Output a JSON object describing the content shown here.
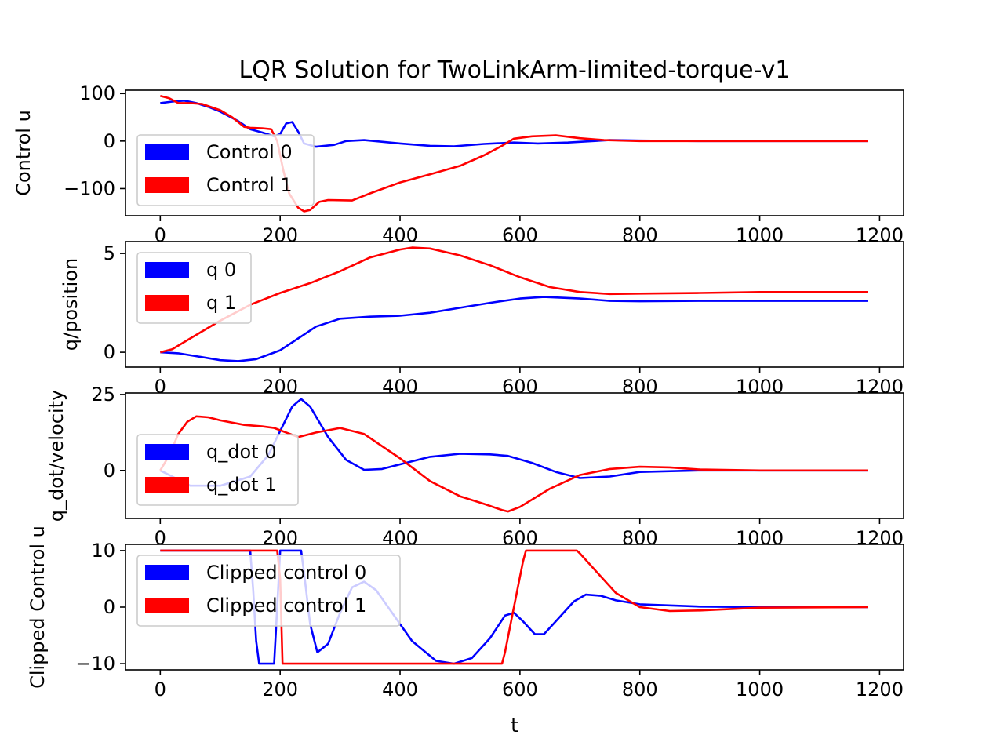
{
  "title": "LQR Solution for TwoLinkArm-limited-torque-v1",
  "xlabel": "t",
  "colors": {
    "series1": "#ff0000",
    "series0": "#0000ff"
  },
  "chart_data": [
    {
      "type": "line",
      "ylabel": "Control u",
      "xlim": [
        -58,
        1240
      ],
      "ylim": [
        -157,
        107
      ],
      "xticks": [
        0,
        200,
        400,
        600,
        800,
        1000,
        1200
      ],
      "xtick_labels": [
        "0",
        "200",
        "400",
        "600",
        "800",
        "1000",
        "1200"
      ],
      "yticks": [
        100,
        0,
        -100
      ],
      "ytick_labels": [
        "100",
        "0",
        "−100"
      ],
      "legend": "left",
      "series": [
        {
          "name": "Control 1",
          "color": "#ff0000",
          "x": [
            0,
            15,
            30,
            50,
            70,
            100,
            120,
            140,
            150,
            170,
            185,
            195,
            205,
            215,
            230,
            240,
            250,
            265,
            280,
            320,
            350,
            400,
            450,
            500,
            540,
            570,
            590,
            620,
            660,
            700,
            740,
            800,
            900,
            1000,
            1180
          ],
          "y": [
            95,
            90,
            80,
            80,
            78,
            65,
            50,
            30,
            28,
            27,
            25,
            0,
            -60,
            -110,
            -140,
            -148,
            -145,
            -128,
            -124,
            -125,
            -110,
            -87,
            -70,
            -52,
            -30,
            -10,
            5,
            10,
            12,
            6,
            2,
            0,
            0,
            0,
            0
          ]
        },
        {
          "name": "Control 0",
          "color": "#0000ff",
          "x": [
            0,
            20,
            40,
            60,
            80,
            100,
            130,
            150,
            170,
            190,
            200,
            210,
            220,
            230,
            240,
            260,
            290,
            310,
            340,
            400,
            450,
            490,
            540,
            590,
            630,
            680,
            750,
            800,
            900,
            1180
          ],
          "y": [
            80,
            83,
            85,
            80,
            72,
            62,
            42,
            25,
            18,
            10,
            15,
            37,
            40,
            20,
            -5,
            -12,
            -8,
            0,
            2,
            -5,
            -10,
            -11,
            -6,
            -3,
            -5,
            -3,
            2,
            1,
            0,
            0
          ]
        }
      ]
    },
    {
      "type": "line",
      "ylabel": "q/position",
      "xlim": [
        -58,
        1240
      ],
      "ylim": [
        -0.75,
        5.6
      ],
      "xticks": [
        0,
        200,
        400,
        600,
        800,
        1000,
        1200
      ],
      "xtick_labels": [
        "0",
        "200",
        "400",
        "600",
        "800",
        "1000",
        "1200"
      ],
      "yticks": [
        5,
        0
      ],
      "ytick_labels": [
        "5",
        "0"
      ],
      "legend": "upper left",
      "series": [
        {
          "name": "q 1",
          "color": "#ff0000",
          "x": [
            0,
            20,
            50,
            100,
            150,
            200,
            250,
            300,
            350,
            400,
            420,
            450,
            500,
            550,
            600,
            650,
            700,
            750,
            800,
            900,
            1000,
            1180
          ],
          "y": [
            0,
            0.15,
            0.7,
            1.6,
            2.4,
            3.0,
            3.5,
            4.1,
            4.8,
            5.2,
            5.3,
            5.25,
            4.9,
            4.4,
            3.8,
            3.3,
            3.05,
            2.95,
            2.97,
            3.0,
            3.05,
            3.05
          ]
        },
        {
          "name": "q 0",
          "color": "#0000ff",
          "x": [
            0,
            30,
            60,
            100,
            130,
            160,
            200,
            230,
            260,
            300,
            350,
            400,
            450,
            500,
            550,
            600,
            640,
            700,
            750,
            800,
            900,
            1000,
            1180
          ],
          "y": [
            0,
            -0.05,
            -0.2,
            -0.4,
            -0.45,
            -0.35,
            0.1,
            0.7,
            1.3,
            1.7,
            1.8,
            1.85,
            2.0,
            2.25,
            2.5,
            2.72,
            2.8,
            2.72,
            2.6,
            2.58,
            2.6,
            2.6,
            2.6
          ]
        }
      ]
    },
    {
      "type": "line",
      "ylabel": "q_dot/velocity",
      "xlim": [
        -58,
        1240
      ],
      "ylim": [
        -15.8,
        25.5
      ],
      "xticks": [
        0,
        200,
        400,
        600,
        800,
        1000,
        1200
      ],
      "xtick_labels": [
        "0",
        "200",
        "400",
        "600",
        "800",
        "1000",
        "1200"
      ],
      "yticks": [
        25,
        0
      ],
      "ytick_labels": [
        "25",
        "0"
      ],
      "legend": "left",
      "series": [
        {
          "name": "q_dot 1",
          "color": "#ff0000",
          "x": [
            0,
            15,
            30,
            45,
            60,
            80,
            100,
            140,
            170,
            190,
            230,
            260,
            300,
            340,
            400,
            450,
            500,
            540,
            570,
            580,
            600,
            650,
            700,
            750,
            800,
            850,
            900,
            1000,
            1180
          ],
          "y": [
            0,
            5,
            12,
            16,
            17.8,
            17.5,
            16.5,
            15,
            14.5,
            14,
            11,
            12.5,
            14,
            12,
            4,
            -3.5,
            -8.5,
            -11,
            -13,
            -13.5,
            -12,
            -6,
            -1.5,
            0.5,
            1.2,
            1,
            0.3,
            0,
            0
          ]
        },
        {
          "name": "q_dot 0",
          "color": "#0000ff",
          "x": [
            0,
            20,
            50,
            100,
            150,
            180,
            200,
            220,
            235,
            250,
            280,
            310,
            340,
            370,
            400,
            450,
            500,
            550,
            580,
            620,
            660,
            700,
            750,
            800,
            900,
            1000,
            1180
          ],
          "y": [
            0,
            -2,
            -5,
            -5,
            -2,
            5,
            13,
            21,
            23.5,
            21,
            11,
            3.5,
            0.2,
            0.5,
            2,
            4.5,
            5.5,
            5.3,
            4.8,
            2.5,
            -0.5,
            -2.5,
            -2,
            -0.5,
            0,
            0,
            0
          ]
        }
      ]
    },
    {
      "type": "line",
      "ylabel": "Clipped Control u",
      "xlim": [
        -58,
        1240
      ],
      "ylim": [
        -11.1,
        11.1
      ],
      "xticks": [
        0,
        200,
        400,
        600,
        800,
        1000,
        1200
      ],
      "xtick_labels": [
        "0",
        "200",
        "400",
        "600",
        "800",
        "1000",
        "1200"
      ],
      "yticks": [
        10,
        0,
        -10
      ],
      "ytick_labels": [
        "10",
        "0",
        "−10"
      ],
      "legend": "upper left",
      "series": [
        {
          "name": "Clipped control 1",
          "color": "#ff0000",
          "x": [
            0,
            195,
            200,
            204,
            570,
            575,
            590,
            605,
            610,
            695,
            700,
            730,
            760,
            800,
            850,
            900,
            1000,
            1180
          ],
          "y": [
            10,
            10,
            5,
            -10,
            -10,
            -8,
            0,
            8,
            10,
            10,
            9.5,
            6,
            2.5,
            0,
            -0.7,
            -0.6,
            -0.1,
            0
          ]
        },
        {
          "name": "Clipped control 0",
          "color": "#0000ff",
          "x": [
            0,
            150,
            155,
            160,
            165,
            190,
            195,
            200,
            235,
            240,
            250,
            262,
            280,
            300,
            320,
            340,
            360,
            390,
            420,
            460,
            490,
            520,
            550,
            575,
            590,
            605,
            625,
            640,
            660,
            690,
            710,
            735,
            760,
            800,
            900,
            1000,
            1180
          ],
          "y": [
            10,
            10,
            3,
            -6,
            -10,
            -10,
            0,
            10,
            10,
            6,
            -3,
            -8,
            -6.5,
            -1,
            3.5,
            4.5,
            3,
            -1.5,
            -6,
            -9.5,
            -10,
            -9,
            -5.5,
            -1.5,
            -1,
            -2.5,
            -4.8,
            -4.8,
            -2.5,
            1,
            2.2,
            2,
            1.2,
            0.5,
            0.1,
            0,
            0
          ]
        }
      ]
    }
  ]
}
